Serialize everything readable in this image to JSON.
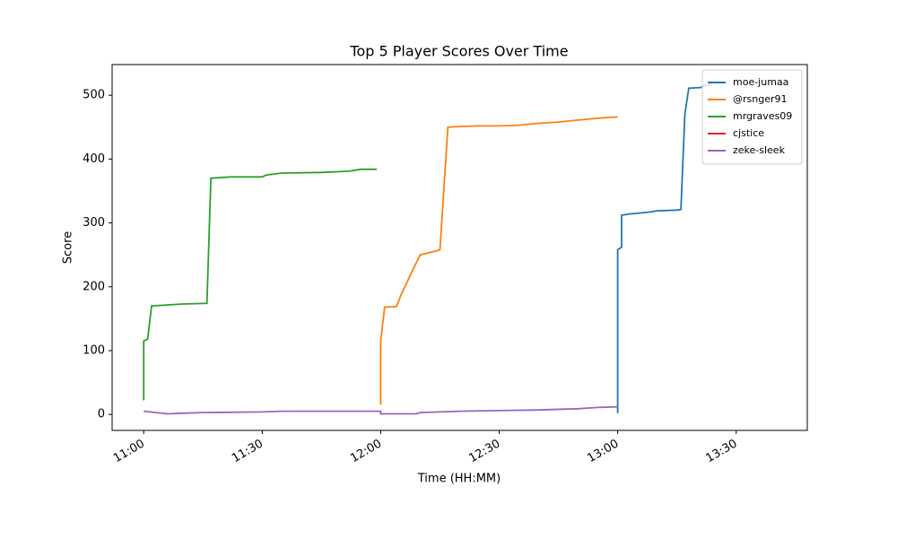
{
  "chart_data": {
    "type": "line",
    "title": "Top 5 Player Scores Over Time",
    "x_label": "Time (HH:MM)",
    "y_label": "Score",
    "xlim": [
      "10:52",
      "13:48"
    ],
    "xticks": [
      "11:00",
      "11:30",
      "12:00",
      "12:30",
      "13:00",
      "13:30"
    ],
    "ylim": [
      -25,
      548
    ],
    "yticks": [
      0,
      100,
      200,
      300,
      400,
      500
    ],
    "legend": "upper right",
    "series": [
      {
        "name": "moe-jumaa",
        "color": "#1f77b4",
        "x": [
          "13:00",
          "13:00",
          "13:01",
          "13:01",
          "13:03",
          "13:05",
          "13:08",
          "13:10",
          "13:15",
          "13:16",
          "13:17",
          "13:18",
          "13:21",
          "13:22",
          "13:24"
        ],
        "values": [
          2,
          258,
          262,
          312,
          314,
          315,
          317,
          319,
          320,
          321,
          470,
          511,
          512,
          515,
          517
        ]
      },
      {
        "name": "@rsnger91",
        "color": "#ff7f0e",
        "x": [
          "12:00",
          "12:00",
          "12:01",
          "12:04",
          "12:05",
          "12:08",
          "12:10",
          "12:12",
          "12:14",
          "12:15",
          "12:17",
          "12:20",
          "12:25",
          "12:30",
          "12:35",
          "12:40",
          "12:45",
          "12:50",
          "12:55",
          "13:00"
        ],
        "values": [
          15,
          115,
          168,
          169,
          185,
          225,
          250,
          253,
          256,
          258,
          450,
          451,
          452,
          452,
          453,
          456,
          458,
          461,
          464,
          466
        ]
      },
      {
        "name": "mrgraves09",
        "color": "#2ca02c",
        "x": [
          "11:00",
          "11:00",
          "11:01",
          "11:02",
          "11:05",
          "11:10",
          "11:16",
          "11:17",
          "11:22",
          "11:30",
          "11:31",
          "11:35",
          "11:45",
          "11:52",
          "11:55",
          "11:59"
        ],
        "values": [
          22,
          115,
          118,
          170,
          171,
          173,
          174,
          370,
          372,
          372,
          375,
          378,
          379,
          381,
          384,
          384
        ]
      },
      {
        "name": "cjstice",
        "color": "#d62728",
        "x": [],
        "values": []
      },
      {
        "name": "zeke-sleek",
        "color": "#9467bd",
        "x": [
          "11:00",
          "11:06",
          "11:10",
          "11:15",
          "11:30",
          "11:35",
          "12:00",
          "12:00",
          "12:09",
          "12:10",
          "12:15",
          "12:20",
          "12:30",
          "12:40",
          "12:50",
          "12:55",
          "13:00"
        ],
        "values": [
          5,
          1,
          2,
          3,
          4,
          5,
          5,
          1,
          1,
          3,
          4,
          5,
          6,
          7,
          9,
          11,
          12
        ]
      }
    ]
  }
}
